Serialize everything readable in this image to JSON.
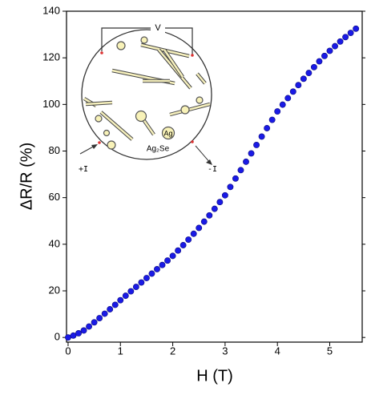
{
  "chart_data": {
    "type": "scatter",
    "x_label": "H (T)",
    "y_label": "ΔR/R (%)",
    "x": [
      0,
      0.1,
      0.2,
      0.3,
      0.4,
      0.5,
      0.6,
      0.7,
      0.8,
      0.9,
      1,
      1.1,
      1.2,
      1.3,
      1.4,
      1.5,
      1.6,
      1.7,
      1.8,
      1.9,
      2,
      2.1,
      2.2,
      2.3,
      2.4,
      2.5,
      2.6,
      2.7,
      2.8,
      2.9,
      3,
      3.1,
      3.2,
      3.3,
      3.4,
      3.5,
      3.6,
      3.7,
      3.8,
      3.9,
      4,
      4.1,
      4.2,
      4.3,
      4.4,
      4.5,
      4.6,
      4.7,
      4.8,
      4.9,
      5,
      5.1,
      5.2,
      5.3,
      5.4,
      5.5
    ],
    "values": [
      0,
      0.8,
      1.8,
      3,
      4.7,
      6.5,
      8.3,
      10.2,
      12.1,
      14,
      16,
      17.9,
      19.8,
      21.7,
      23.6,
      25.5,
      27.4,
      29.3,
      31.1,
      33,
      35,
      37.3,
      39.6,
      42,
      44.5,
      47,
      49.7,
      52.4,
      55.2,
      58.1,
      61,
      64.6,
      68.2,
      71.8,
      75.4,
      79,
      82.6,
      86.2,
      89.8,
      93.4,
      97,
      99.9,
      102.7,
      105.5,
      108.3,
      111,
      113.5,
      116,
      118.5,
      120.8,
      123,
      125,
      127,
      128.9,
      130.7,
      132.5
    ],
    "color": "#1a1ae6",
    "xlim": [
      -0.03,
      5.62
    ],
    "xticks": [
      0,
      1,
      2,
      3,
      4,
      5
    ],
    "ylim": [
      -2,
      140
    ],
    "yticks": [
      0,
      20,
      40,
      60,
      80,
      100,
      120,
      140
    ],
    "annotations": [
      "V",
      "+I",
      "-I",
      "Ag₂Se",
      "Ag"
    ]
  }
}
